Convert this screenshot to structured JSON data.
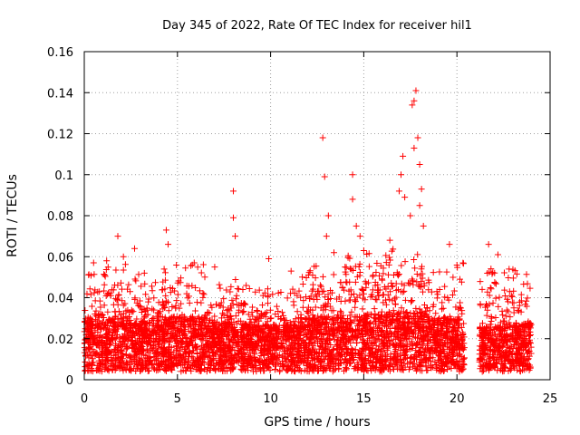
{
  "chart_data": {
    "type": "scatter",
    "title": "Day 345 of 2022, Rate Of TEC Index for receiver hil1",
    "xlabel": "GPS time / hours",
    "ylabel": "ROTI / TECUs",
    "xlim": [
      0,
      25
    ],
    "ylim": [
      0,
      0.16
    ],
    "x_ticks": [
      0,
      5,
      10,
      15,
      20,
      25
    ],
    "x_tick_labels": [
      "0",
      "5",
      "10",
      "15",
      "20",
      "25"
    ],
    "y_ticks": [
      0,
      0.02,
      0.04,
      0.06,
      0.08,
      0.1,
      0.12,
      0.14,
      0.16
    ],
    "y_tick_labels": [
      "0",
      "0.02",
      "0.04",
      "0.06",
      "0.08",
      "0.1",
      "0.12",
      "0.14",
      "0.16"
    ],
    "grid": true,
    "marker": "+",
    "series": [
      {
        "name": "hil1",
        "color": "#ff0000",
        "data_gap_hours": [
          20.4,
          21.2
        ],
        "notable_points": [
          {
            "x": 0.5,
            "y": 0.057
          },
          {
            "x": 1.2,
            "y": 0.058
          },
          {
            "x": 1.8,
            "y": 0.07
          },
          {
            "x": 2.1,
            "y": 0.06
          },
          {
            "x": 2.7,
            "y": 0.064
          },
          {
            "x": 4.4,
            "y": 0.073
          },
          {
            "x": 4.5,
            "y": 0.066
          },
          {
            "x": 5.9,
            "y": 0.057
          },
          {
            "x": 7.0,
            "y": 0.055
          },
          {
            "x": 8.0,
            "y": 0.092
          },
          {
            "x": 8.0,
            "y": 0.079
          },
          {
            "x": 8.1,
            "y": 0.07
          },
          {
            "x": 9.9,
            "y": 0.059
          },
          {
            "x": 11.1,
            "y": 0.053
          },
          {
            "x": 12.8,
            "y": 0.118
          },
          {
            "x": 12.9,
            "y": 0.099
          },
          {
            "x": 13.1,
            "y": 0.08
          },
          {
            "x": 13.0,
            "y": 0.07
          },
          {
            "x": 13.4,
            "y": 0.062
          },
          {
            "x": 14.4,
            "y": 0.1
          },
          {
            "x": 14.4,
            "y": 0.088
          },
          {
            "x": 14.6,
            "y": 0.075
          },
          {
            "x": 14.8,
            "y": 0.07
          },
          {
            "x": 15.0,
            "y": 0.063
          },
          {
            "x": 16.4,
            "y": 0.068
          },
          {
            "x": 16.9,
            "y": 0.092
          },
          {
            "x": 17.1,
            "y": 0.109
          },
          {
            "x": 17.0,
            "y": 0.1
          },
          {
            "x": 17.2,
            "y": 0.089
          },
          {
            "x": 17.5,
            "y": 0.08
          },
          {
            "x": 17.8,
            "y": 0.141
          },
          {
            "x": 17.7,
            "y": 0.136
          },
          {
            "x": 17.6,
            "y": 0.134
          },
          {
            "x": 17.9,
            "y": 0.118
          },
          {
            "x": 17.7,
            "y": 0.113
          },
          {
            "x": 18.0,
            "y": 0.105
          },
          {
            "x": 18.1,
            "y": 0.093
          },
          {
            "x": 18.0,
            "y": 0.085
          },
          {
            "x": 18.2,
            "y": 0.075
          },
          {
            "x": 19.6,
            "y": 0.066
          },
          {
            "x": 21.7,
            "y": 0.066
          },
          {
            "x": 22.2,
            "y": 0.061
          },
          {
            "x": 22.8,
            "y": 0.054
          }
        ],
        "density_profile": [
          {
            "x0": 0.0,
            "x1": 1.0,
            "base": 0.018,
            "upper": 0.04
          },
          {
            "x0": 1.0,
            "x1": 2.5,
            "base": 0.018,
            "upper": 0.045
          },
          {
            "x0": 2.5,
            "x1": 4.0,
            "base": 0.017,
            "upper": 0.04
          },
          {
            "x0": 4.0,
            "x1": 6.5,
            "base": 0.019,
            "upper": 0.046
          },
          {
            "x0": 6.5,
            "x1": 8.5,
            "base": 0.016,
            "upper": 0.037
          },
          {
            "x0": 8.5,
            "x1": 11.5,
            "base": 0.015,
            "upper": 0.034
          },
          {
            "x0": 11.5,
            "x1": 14.0,
            "base": 0.019,
            "upper": 0.045
          },
          {
            "x0": 14.0,
            "x1": 16.0,
            "base": 0.02,
            "upper": 0.05
          },
          {
            "x0": 16.0,
            "x1": 18.5,
            "base": 0.021,
            "upper": 0.052
          },
          {
            "x0": 18.5,
            "x1": 20.4,
            "base": 0.018,
            "upper": 0.045
          },
          {
            "x0": 21.2,
            "x1": 22.5,
            "base": 0.014,
            "upper": 0.043
          },
          {
            "x0": 22.5,
            "x1": 24.0,
            "base": 0.016,
            "upper": 0.042
          }
        ]
      }
    ]
  }
}
